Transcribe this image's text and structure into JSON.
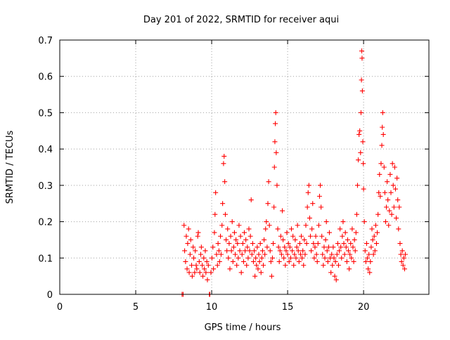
{
  "chart_data": {
    "type": "scatter",
    "title": "Day 201 of 2022, SRMTID for receiver aqui",
    "xlabel": "GPS time / hours",
    "ylabel": "SRMTID / TECUs",
    "xlim": [
      0,
      24.3
    ],
    "ylim": [
      0,
      0.7
    ],
    "x_ticks": [
      0,
      5,
      10,
      15,
      20
    ],
    "y_ticks": [
      0,
      0.1,
      0.2,
      0.3,
      0.4,
      0.5,
      0.6,
      0.7
    ],
    "x_tick_labels": [
      "0",
      "5",
      "10",
      "15",
      "20"
    ],
    "y_tick_labels": [
      "0",
      "0.1",
      "0.2",
      "0.3",
      "0.4",
      "0.5",
      "0.6",
      "0.7"
    ],
    "grid": true,
    "marker": "+",
    "color": "#ff0000",
    "series": [
      {
        "name": "SRMTID",
        "points": [
          [
            8.05,
            0.0
          ],
          [
            8.12,
            0.0
          ],
          [
            8.18,
            0.19
          ],
          [
            8.22,
            0.12
          ],
          [
            8.28,
            0.09
          ],
          [
            8.33,
            0.16
          ],
          [
            8.38,
            0.07
          ],
          [
            8.42,
            0.14
          ],
          [
            8.48,
            0.18
          ],
          [
            8.52,
            0.06
          ],
          [
            8.58,
            0.11
          ],
          [
            8.62,
            0.15
          ],
          [
            8.68,
            0.08
          ],
          [
            8.72,
            0.05
          ],
          [
            8.78,
            0.13
          ],
          [
            8.82,
            0.1
          ],
          [
            8.88,
            0.06
          ],
          [
            8.92,
            0.12
          ],
          [
            8.98,
            0.08
          ],
          [
            9.02,
            0.07
          ],
          [
            9.08,
            0.16
          ],
          [
            9.12,
            0.17
          ],
          [
            9.18,
            0.09
          ],
          [
            9.22,
            0.06
          ],
          [
            9.28,
            0.11
          ],
          [
            9.32,
            0.13
          ],
          [
            9.38,
            0.08
          ],
          [
            9.42,
            0.05
          ],
          [
            9.48,
            0.1
          ],
          [
            9.52,
            0.07
          ],
          [
            9.58,
            0.12
          ],
          [
            9.62,
            0.06
          ],
          [
            9.68,
            0.09
          ],
          [
            9.72,
            0.04
          ],
          [
            9.78,
            0.08
          ],
          [
            9.85,
            0.0
          ],
          [
            9.88,
            0.0
          ],
          [
            9.95,
            0.06
          ],
          [
            10.02,
            0.1
          ],
          [
            10.08,
            0.13
          ],
          [
            10.12,
            0.07
          ],
          [
            10.18,
            0.17
          ],
          [
            10.22,
            0.22
          ],
          [
            10.26,
            0.28
          ],
          [
            10.32,
            0.11
          ],
          [
            10.38,
            0.08
          ],
          [
            10.42,
            0.14
          ],
          [
            10.48,
            0.12
          ],
          [
            10.52,
            0.09
          ],
          [
            10.58,
            0.16
          ],
          [
            10.62,
            0.11
          ],
          [
            10.68,
            0.19
          ],
          [
            10.72,
            0.25
          ],
          [
            10.78,
            0.36
          ],
          [
            10.82,
            0.38
          ],
          [
            10.86,
            0.31
          ],
          [
            10.9,
            0.22
          ],
          [
            10.95,
            0.15
          ],
          [
            11.0,
            0.12
          ],
          [
            11.05,
            0.18
          ],
          [
            11.1,
            0.1
          ],
          [
            11.15,
            0.14
          ],
          [
            11.2,
            0.07
          ],
          [
            11.25,
            0.16
          ],
          [
            11.3,
            0.12
          ],
          [
            11.35,
            0.2
          ],
          [
            11.4,
            0.09
          ],
          [
            11.45,
            0.13
          ],
          [
            11.5,
            0.17
          ],
          [
            11.55,
            0.11
          ],
          [
            11.6,
            0.15
          ],
          [
            11.65,
            0.08
          ],
          [
            11.7,
            0.14
          ],
          [
            11.75,
            0.1
          ],
          [
            11.8,
            0.19
          ],
          [
            11.85,
            0.12
          ],
          [
            11.9,
            0.16
          ],
          [
            11.95,
            0.06
          ],
          [
            12.0,
            0.11
          ],
          [
            12.05,
            0.14
          ],
          [
            12.1,
            0.09
          ],
          [
            12.15,
            0.17
          ],
          [
            12.2,
            0.12
          ],
          [
            12.25,
            0.15
          ],
          [
            12.3,
            0.08
          ],
          [
            12.35,
            0.13
          ],
          [
            12.4,
            0.1
          ],
          [
            12.45,
            0.18
          ],
          [
            12.5,
            0.12
          ],
          [
            12.55,
            0.16
          ],
          [
            12.6,
            0.26
          ],
          [
            12.65,
            0.11
          ],
          [
            12.7,
            0.14
          ],
          [
            12.75,
            0.09
          ],
          [
            12.8,
            0.12
          ],
          [
            12.85,
            0.05
          ],
          [
            12.9,
            0.1
          ],
          [
            12.95,
            0.08
          ],
          [
            13.0,
            0.13
          ],
          [
            13.05,
            0.07
          ],
          [
            13.1,
            0.11
          ],
          [
            13.15,
            0.09
          ],
          [
            13.2,
            0.14
          ],
          [
            13.25,
            0.06
          ],
          [
            13.3,
            0.1
          ],
          [
            13.35,
            0.12
          ],
          [
            13.4,
            0.08
          ],
          [
            13.45,
            0.15
          ],
          [
            13.5,
            0.11
          ],
          [
            13.55,
            0.18
          ],
          [
            13.6,
            0.2
          ],
          [
            13.65,
            0.13
          ],
          [
            13.7,
            0.25
          ],
          [
            13.75,
            0.31
          ],
          [
            13.8,
            0.19
          ],
          [
            13.85,
            0.12
          ],
          [
            13.9,
            0.09
          ],
          [
            13.95,
            0.05
          ],
          [
            14.0,
            0.1
          ],
          [
            14.05,
            0.14
          ],
          [
            14.1,
            0.24
          ],
          [
            14.13,
            0.35
          ],
          [
            14.16,
            0.42
          ],
          [
            14.19,
            0.47
          ],
          [
            14.22,
            0.5
          ],
          [
            14.25,
            0.39
          ],
          [
            14.3,
            0.3
          ],
          [
            14.35,
            0.18
          ],
          [
            14.4,
            0.13
          ],
          [
            14.45,
            0.09
          ],
          [
            14.5,
            0.12
          ],
          [
            14.55,
            0.16
          ],
          [
            14.6,
            0.11
          ],
          [
            14.65,
            0.23
          ],
          [
            14.7,
            0.15
          ],
          [
            14.75,
            0.1
          ],
          [
            14.8,
            0.13
          ],
          [
            14.85,
            0.08
          ],
          [
            14.9,
            0.12
          ],
          [
            14.95,
            0.17
          ],
          [
            15.0,
            0.11
          ],
          [
            15.05,
            0.14
          ],
          [
            15.1,
            0.09
          ],
          [
            15.15,
            0.13
          ],
          [
            15.2,
            0.1
          ],
          [
            15.25,
            0.18
          ],
          [
            15.3,
            0.12
          ],
          [
            15.35,
            0.16
          ],
          [
            15.4,
            0.08
          ],
          [
            15.45,
            0.11
          ],
          [
            15.5,
            0.15
          ],
          [
            15.55,
            0.1
          ],
          [
            15.6,
            0.13
          ],
          [
            15.65,
            0.19
          ],
          [
            15.7,
            0.12
          ],
          [
            15.75,
            0.09
          ],
          [
            15.8,
            0.14
          ],
          [
            15.85,
            0.11
          ],
          [
            15.9,
            0.16
          ],
          [
            15.95,
            0.1
          ],
          [
            16.0,
            0.12
          ],
          [
            16.05,
            0.08
          ],
          [
            16.1,
            0.15
          ],
          [
            16.15,
            0.11
          ],
          [
            16.2,
            0.19
          ],
          [
            16.25,
            0.14
          ],
          [
            16.3,
            0.24
          ],
          [
            16.35,
            0.28
          ],
          [
            16.4,
            0.3
          ],
          [
            16.45,
            0.21
          ],
          [
            16.5,
            0.16
          ],
          [
            16.55,
            0.12
          ],
          [
            16.6,
            0.18
          ],
          [
            16.65,
            0.25
          ],
          [
            16.7,
            0.14
          ],
          [
            16.75,
            0.1
          ],
          [
            16.8,
            0.13
          ],
          [
            16.85,
            0.16
          ],
          [
            16.9,
            0.11
          ],
          [
            16.95,
            0.09
          ],
          [
            17.0,
            0.14
          ],
          [
            17.05,
            0.19
          ],
          [
            17.1,
            0.27
          ],
          [
            17.15,
            0.3
          ],
          [
            17.2,
            0.24
          ],
          [
            17.25,
            0.16
          ],
          [
            17.3,
            0.11
          ],
          [
            17.35,
            0.08
          ],
          [
            17.4,
            0.13
          ],
          [
            17.45,
            0.1
          ],
          [
            17.5,
            0.15
          ],
          [
            17.55,
            0.2
          ],
          [
            17.6,
            0.12
          ],
          [
            17.65,
            0.09
          ],
          [
            17.7,
            0.13
          ],
          [
            17.75,
            0.17
          ],
          [
            17.8,
            0.1
          ],
          [
            17.85,
            0.06
          ],
          [
            17.9,
            0.11
          ],
          [
            17.95,
            0.08
          ],
          [
            18.0,
            0.13
          ],
          [
            18.05,
            0.1
          ],
          [
            18.1,
            0.05
          ],
          [
            18.15,
            0.09
          ],
          [
            18.2,
            0.04
          ],
          [
            18.25,
            0.11
          ],
          [
            18.3,
            0.14
          ],
          [
            18.35,
            0.08
          ],
          [
            18.4,
            0.12
          ],
          [
            18.45,
            0.18
          ],
          [
            18.5,
            0.13
          ],
          [
            18.55,
            0.1
          ],
          [
            18.6,
            0.16
          ],
          [
            18.65,
            0.2
          ],
          [
            18.7,
            0.14
          ],
          [
            18.75,
            0.11
          ],
          [
            18.8,
            0.17
          ],
          [
            18.85,
            0.13
          ],
          [
            18.9,
            0.09
          ],
          [
            18.95,
            0.15
          ],
          [
            19.0,
            0.12
          ],
          [
            19.05,
            0.07
          ],
          [
            19.1,
            0.11
          ],
          [
            19.15,
            0.14
          ],
          [
            19.2,
            0.1
          ],
          [
            19.25,
            0.18
          ],
          [
            19.3,
            0.13
          ],
          [
            19.35,
            0.09
          ],
          [
            19.4,
            0.15
          ],
          [
            19.45,
            0.12
          ],
          [
            19.5,
            0.17
          ],
          [
            19.55,
            0.22
          ],
          [
            19.6,
            0.3
          ],
          [
            19.65,
            0.37
          ],
          [
            19.7,
            0.44
          ],
          [
            19.75,
            0.45
          ],
          [
            19.8,
            0.39
          ],
          [
            19.83,
            0.5
          ],
          [
            19.86,
            0.59
          ],
          [
            19.88,
            0.67
          ],
          [
            19.9,
            0.65
          ],
          [
            19.92,
            0.56
          ],
          [
            19.95,
            0.42
          ],
          [
            19.98,
            0.36
          ],
          [
            20.0,
            0.29
          ],
          [
            20.05,
            0.2
          ],
          [
            20.1,
            0.12
          ],
          [
            20.15,
            0.09
          ],
          [
            20.2,
            0.14
          ],
          [
            20.25,
            0.1
          ],
          [
            20.3,
            0.07
          ],
          [
            20.35,
            0.11
          ],
          [
            20.4,
            0.06
          ],
          [
            20.45,
            0.09
          ],
          [
            20.5,
            0.13
          ],
          [
            20.55,
            0.18
          ],
          [
            20.6,
            0.15
          ],
          [
            20.65,
            0.11
          ],
          [
            20.7,
            0.16
          ],
          [
            20.75,
            0.12
          ],
          [
            20.8,
            0.19
          ],
          [
            20.85,
            0.14
          ],
          [
            20.9,
            0.17
          ],
          [
            20.95,
            0.22
          ],
          [
            21.0,
            0.28
          ],
          [
            21.05,
            0.33
          ],
          [
            21.1,
            0.27
          ],
          [
            21.15,
            0.36
          ],
          [
            21.2,
            0.41
          ],
          [
            21.23,
            0.46
          ],
          [
            21.26,
            0.5
          ],
          [
            21.3,
            0.44
          ],
          [
            21.35,
            0.35
          ],
          [
            21.4,
            0.28
          ],
          [
            21.45,
            0.2
          ],
          [
            21.5,
            0.24
          ],
          [
            21.55,
            0.31
          ],
          [
            21.6,
            0.26
          ],
          [
            21.65,
            0.19
          ],
          [
            21.7,
            0.23
          ],
          [
            21.75,
            0.33
          ],
          [
            21.8,
            0.28
          ],
          [
            21.85,
            0.22
          ],
          [
            21.9,
            0.36
          ],
          [
            21.95,
            0.3
          ],
          [
            22.0,
            0.24
          ],
          [
            22.05,
            0.35
          ],
          [
            22.1,
            0.29
          ],
          [
            22.15,
            0.21
          ],
          [
            22.2,
            0.32
          ],
          [
            22.25,
            0.26
          ],
          [
            22.3,
            0.18
          ],
          [
            22.35,
            0.24
          ],
          [
            22.4,
            0.14
          ],
          [
            22.45,
            0.11
          ],
          [
            22.5,
            0.09
          ],
          [
            22.55,
            0.12
          ],
          [
            22.6,
            0.08
          ],
          [
            22.65,
            0.1
          ],
          [
            22.7,
            0.07
          ],
          [
            22.75,
            0.11
          ]
        ]
      }
    ]
  }
}
